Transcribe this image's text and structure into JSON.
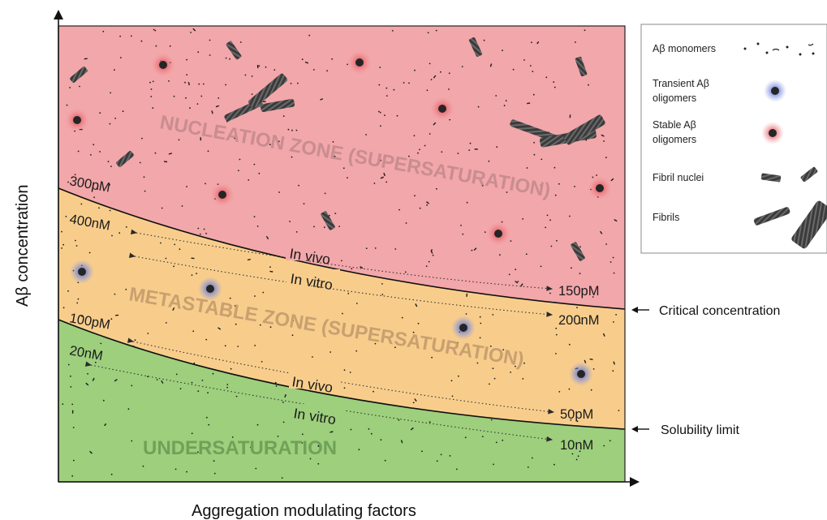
{
  "axes": {
    "x_label": "Aggregation modulating factors",
    "y_label": "Aβ concentration"
  },
  "zones": {
    "nucleation": {
      "label": "NUCLEATION ZONE (SUPERSATURATION)",
      "color": "#f2a7aa",
      "text_color": "#c98d90"
    },
    "metastable": {
      "label": "METASTABLE ZONE (SUPERSATURATION)",
      "color": "#f8cd8c",
      "text_color": "#c9a070"
    },
    "undersaturation": {
      "label": "UNDERSATURATION",
      "color": "#9dcf7d",
      "text_color": "#6fa158"
    }
  },
  "boundaries": {
    "critical": "Critical concentration",
    "solubility": "Solubility limit"
  },
  "ranges": {
    "critical_in_vivo": {
      "mode": "In vivo",
      "start": "300pM",
      "end": "150pM"
    },
    "critical_in_vitro": {
      "mode": "In vitro",
      "start": "400nM",
      "end": "200nM"
    },
    "solubility_in_vivo": {
      "mode": "In vivo",
      "start": "100pM",
      "end": "50pM"
    },
    "solubility_in_vitro": {
      "mode": "In vitro",
      "start": "20nM",
      "end": "10nM"
    }
  },
  "legend": {
    "items": [
      {
        "label_lines": [
          "Aβ monomers"
        ],
        "icon": "monomer-dots-icon"
      },
      {
        "label_lines": [
          "Transient Aβ",
          "oligomers"
        ],
        "icon": "transient-oligomer-icon",
        "glow": "#5d73d6"
      },
      {
        "label_lines": [
          "Stable Aβ",
          "oligomers"
        ],
        "icon": "stable-oligomer-icon",
        "glow": "#e8555f"
      },
      {
        "label_lines": [
          "Fibril nuclei"
        ],
        "icon": "fibril-nucleus-icon"
      },
      {
        "label_lines": [
          "Fibrils"
        ],
        "icon": "fibril-icon"
      }
    ]
  }
}
